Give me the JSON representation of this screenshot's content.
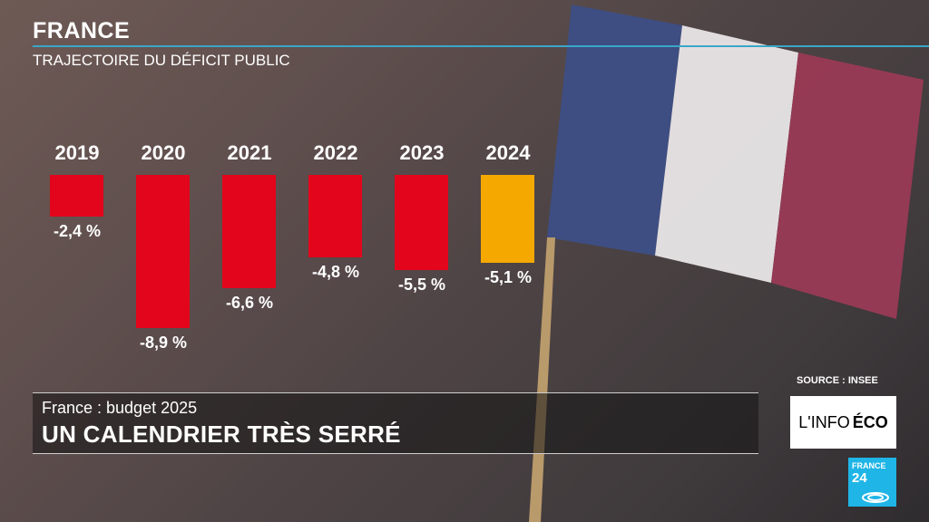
{
  "header": {
    "title": "FRANCE",
    "subtitle": "TRAJECTOIRE DU DÉFICIT PUBLIC"
  },
  "chart_data": {
    "type": "bar",
    "title": "TRAJECTOIRE DU DÉFICIT PUBLIC",
    "categories": [
      "2019",
      "2020",
      "2021",
      "2022",
      "2023",
      "2024"
    ],
    "values": [
      -2.4,
      -8.9,
      -6.6,
      -4.8,
      -5.5,
      -5.1
    ],
    "labels": [
      "-2,4 %",
      "-8,9 %",
      "-6,6 %",
      "-4,8 %",
      "-5,5 %",
      "-5,1 %"
    ],
    "colors": [
      "#e3051b",
      "#e3051b",
      "#e3051b",
      "#e3051b",
      "#e3051b",
      "#f5a800"
    ],
    "ylim": [
      -9,
      0
    ],
    "grid": false,
    "source": "SOURCE : INSEE"
  },
  "lower_third": {
    "kicker": "France : budget 2025",
    "headline": "UN CALENDRIER TRÈS SERRÉ"
  },
  "branding": {
    "show_prefix": "L'INFO",
    "show_suffix": "ÉCO",
    "channel_line1": "FRANCE",
    "channel_line2": "24"
  }
}
